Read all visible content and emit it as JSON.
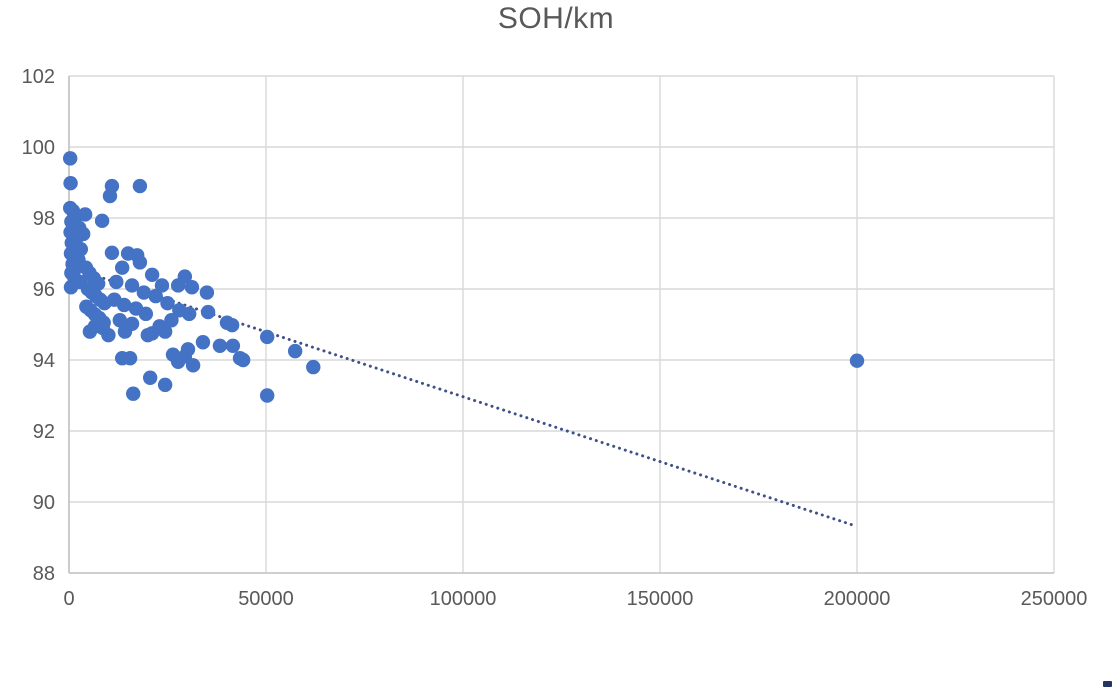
{
  "chart_data": {
    "type": "scatter",
    "title": "SOH/km",
    "xlabel": "",
    "ylabel": "",
    "xlim": [
      0,
      250000
    ],
    "ylim": [
      88,
      102
    ],
    "x_ticks": [
      0,
      50000,
      100000,
      150000,
      200000,
      250000
    ],
    "y_ticks": [
      88,
      90,
      92,
      94,
      96,
      98,
      100,
      102
    ],
    "grid": true,
    "legend": false,
    "series": [
      {
        "name": "SOH",
        "marker": "circle",
        "points": [
          [
            300,
            99.68
          ],
          [
            400,
            98.98
          ],
          [
            10900,
            98.9
          ],
          [
            18000,
            98.9
          ],
          [
            10400,
            98.62
          ],
          [
            8400,
            97.92
          ],
          [
            300,
            98.28
          ],
          [
            1000,
            98.2
          ],
          [
            1800,
            98.05
          ],
          [
            4100,
            98.1
          ],
          [
            600,
            97.9
          ],
          [
            1400,
            97.8
          ],
          [
            2600,
            97.72
          ],
          [
            400,
            97.6
          ],
          [
            3600,
            97.55
          ],
          [
            1100,
            97.52
          ],
          [
            2000,
            97.45
          ],
          [
            700,
            97.3
          ],
          [
            1600,
            97.22
          ],
          [
            3000,
            97.12
          ],
          [
            500,
            97.0
          ],
          [
            1200,
            96.9
          ],
          [
            2400,
            96.82
          ],
          [
            900,
            96.7
          ],
          [
            1900,
            96.6
          ],
          [
            600,
            96.45
          ],
          [
            1400,
            96.3
          ],
          [
            2800,
            96.2
          ],
          [
            500,
            96.05
          ],
          [
            4300,
            96.6
          ],
          [
            5200,
            96.45
          ],
          [
            6300,
            96.3
          ],
          [
            7400,
            96.15
          ],
          [
            4800,
            96.0
          ],
          [
            5800,
            95.9
          ],
          [
            6800,
            95.8
          ],
          [
            7900,
            95.7
          ],
          [
            9000,
            95.6
          ],
          [
            4400,
            95.5
          ],
          [
            5500,
            95.4
          ],
          [
            6600,
            95.28
          ],
          [
            7700,
            95.18
          ],
          [
            8800,
            95.05
          ],
          [
            6600,
            94.95
          ],
          [
            5300,
            94.8
          ],
          [
            8600,
            94.9
          ],
          [
            10000,
            94.7
          ],
          [
            10900,
            97.02
          ],
          [
            15000,
            97.0
          ],
          [
            17300,
            96.95
          ],
          [
            18000,
            96.75
          ],
          [
            13500,
            96.6
          ],
          [
            12000,
            96.2
          ],
          [
            16000,
            96.1
          ],
          [
            19000,
            95.9
          ],
          [
            11500,
            95.7
          ],
          [
            14000,
            95.55
          ],
          [
            17000,
            95.45
          ],
          [
            19500,
            95.3
          ],
          [
            12900,
            95.12
          ],
          [
            16000,
            95.02
          ],
          [
            14200,
            94.8
          ],
          [
            20000,
            94.7
          ],
          [
            13500,
            94.05
          ],
          [
            15500,
            94.05
          ],
          [
            16300,
            93.05
          ],
          [
            20600,
            93.5
          ],
          [
            24400,
            93.3
          ],
          [
            21100,
            96.4
          ],
          [
            29400,
            96.35
          ],
          [
            23600,
            96.1
          ],
          [
            27700,
            96.1
          ],
          [
            31200,
            96.05
          ],
          [
            22000,
            95.8
          ],
          [
            25000,
            95.6
          ],
          [
            28000,
            95.4
          ],
          [
            30500,
            95.3
          ],
          [
            26000,
            95.12
          ],
          [
            23000,
            94.95
          ],
          [
            24400,
            94.8
          ],
          [
            21100,
            94.75
          ],
          [
            26400,
            94.15
          ],
          [
            27700,
            93.95
          ],
          [
            29400,
            94.1
          ],
          [
            31500,
            93.85
          ],
          [
            30200,
            94.3
          ],
          [
            34000,
            94.5
          ],
          [
            35000,
            95.9
          ],
          [
            35300,
            95.35
          ],
          [
            40100,
            95.05
          ],
          [
            41400,
            94.98
          ],
          [
            38300,
            94.4
          ],
          [
            41600,
            94.4
          ],
          [
            43400,
            94.05
          ],
          [
            44200,
            94.0
          ],
          [
            50300,
            94.65
          ],
          [
            57400,
            94.25
          ],
          [
            62000,
            93.8
          ],
          [
            50300,
            93.0
          ],
          [
            200000,
            93.98
          ]
        ]
      }
    ],
    "trendline": {
      "style": "dotted",
      "start": [
        0,
        96.62
      ],
      "end": [
        199500,
        89.33
      ]
    }
  },
  "colors": {
    "marker": "#4472C4",
    "trendline": "#405089",
    "gridline": "#D9D9D9",
    "axis_line": "#BFBFBF",
    "tick_text": "#595959",
    "title_text": "#595959",
    "background": "#FFFFFF"
  },
  "layout_values": {
    "tick_font_px": 20
  }
}
